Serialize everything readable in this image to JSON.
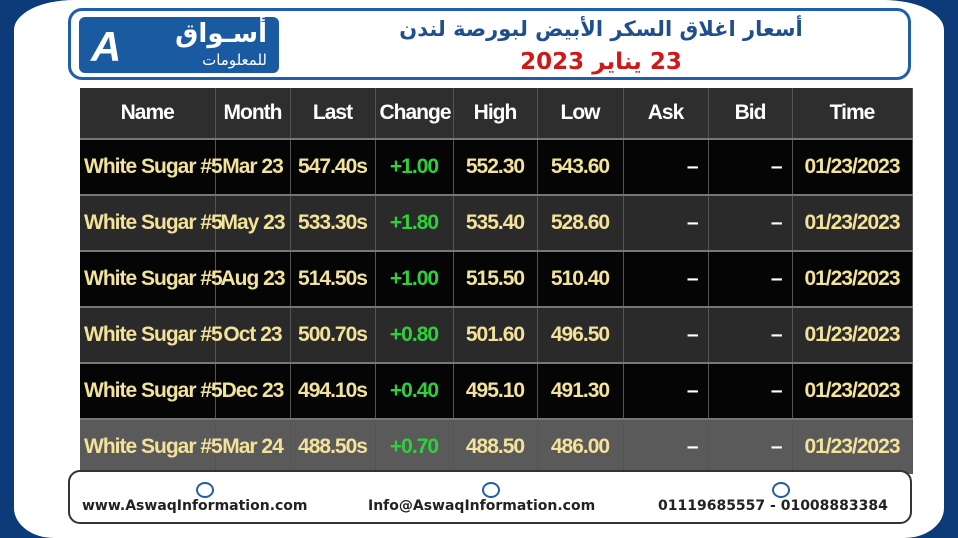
{
  "header": {
    "logo_main": "أسـواق",
    "logo_sub": "للمعلومات",
    "title": "أسعار اغلاق السكر الأبيض لبورصة لندن",
    "date": "23 يناير 2023"
  },
  "table": {
    "columns": [
      "Name",
      "Month",
      "Last",
      "Change",
      "High",
      "Low",
      "Ask",
      "Bid",
      "Time"
    ],
    "rows": [
      [
        "White Sugar #5",
        "Mar 23",
        "547.40s",
        "+1.00",
        "552.30",
        "543.60",
        "–",
        "–",
        "01/23/2023"
      ],
      [
        "White Sugar #5",
        "May 23",
        "533.30s",
        "+1.80",
        "535.40",
        "528.60",
        "–",
        "–",
        "01/23/2023"
      ],
      [
        "White Sugar #5",
        "Aug 23",
        "514.50s",
        "+1.00",
        "515.50",
        "510.40",
        "–",
        "–",
        "01/23/2023"
      ],
      [
        "White Sugar #5",
        "Oct 23",
        "500.70s",
        "+0.80",
        "501.60",
        "496.50",
        "–",
        "–",
        "01/23/2023"
      ],
      [
        "White Sugar #5",
        "Dec 23",
        "494.10s",
        "+0.40",
        "495.10",
        "491.30",
        "–",
        "–",
        "01/23/2023"
      ],
      [
        "White Sugar #5",
        "Mar 24",
        "488.50s",
        "+0.70",
        "488.50",
        "486.00",
        "–",
        "–",
        "01/23/2023"
      ]
    ]
  },
  "footer": {
    "website": "www.AswaqInformation.com",
    "email": "Info@AswaqInformation.com",
    "phone": "01119685557 - 01008883384"
  }
}
